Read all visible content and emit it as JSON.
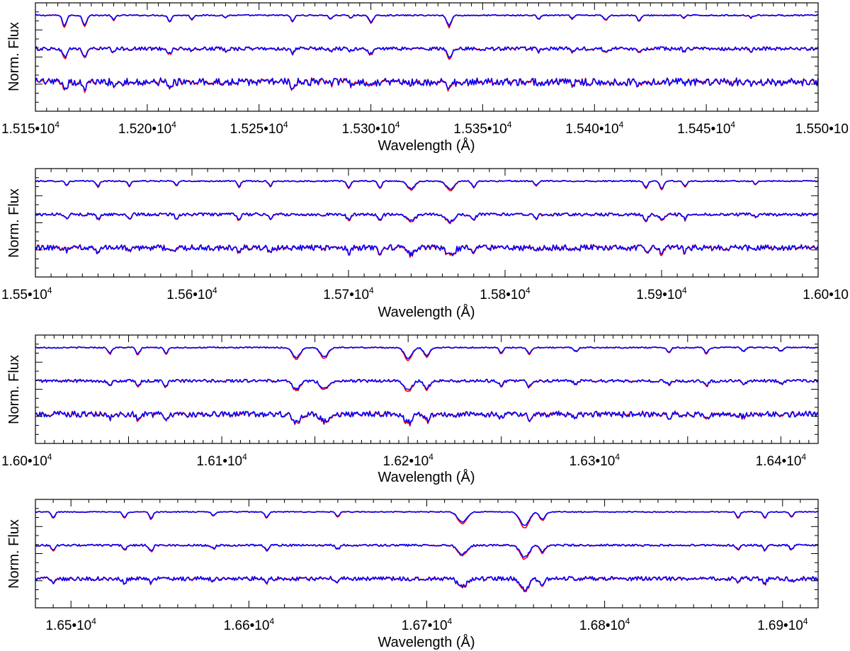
{
  "colors": {
    "observed": "#ff0000",
    "model": "#0000ff",
    "axis": "#000000"
  },
  "chart_data": [
    {
      "type": "line",
      "xlabel": "Wavelength (Å)",
      "ylabel": "Norm. Flux",
      "xlim": [
        15150,
        15500
      ],
      "ticks": [
        {
          "value": 15150,
          "label": "1.515•10",
          "exp": "4"
        },
        {
          "value": 15200,
          "label": "1.520•10",
          "exp": "4"
        },
        {
          "value": 15250,
          "label": "1.525•10",
          "exp": "4"
        },
        {
          "value": 15300,
          "label": "1.530•10",
          "exp": "4"
        },
        {
          "value": 15350,
          "label": "1.535•10",
          "exp": "4"
        },
        {
          "value": 15400,
          "label": "1.540•10",
          "exp": "4"
        },
        {
          "value": 15450,
          "label": "1.545•10",
          "exp": "4"
        },
        {
          "value": 15500,
          "label": "1.550•10",
          "exp": ""
        }
      ],
      "rows": [
        1.0,
        0.6,
        0.2
      ],
      "noise": [
        0.008,
        0.022,
        0.045
      ],
      "lines": [
        [
          15163,
          0.55,
          0.9
        ],
        [
          15172,
          0.5,
          0.9
        ],
        [
          15185,
          0.25,
          0.7
        ],
        [
          15210,
          0.3,
          0.8
        ],
        [
          15220,
          0.2,
          0.7
        ],
        [
          15235,
          0.12,
          0.6
        ],
        [
          15265,
          0.3,
          0.8
        ],
        [
          15282,
          0.2,
          0.7
        ],
        [
          15291,
          0.15,
          0.6
        ],
        [
          15300,
          0.35,
          1.0
        ],
        [
          15335,
          0.55,
          1.0
        ],
        [
          15375,
          0.2,
          0.7
        ],
        [
          15390,
          0.18,
          0.7
        ],
        [
          15405,
          0.25,
          0.8
        ],
        [
          15420,
          0.3,
          0.8
        ],
        [
          15440,
          0.15,
          0.6
        ],
        [
          15470,
          0.12,
          0.6
        ]
      ]
    },
    {
      "type": "line",
      "xlabel": "Wavelength (Å)",
      "ylabel": "Norm. Flux",
      "xlim": [
        15500,
        16000
      ],
      "ticks": [
        {
          "value": 15500,
          "label": "1.55•10",
          "exp": "4"
        },
        {
          "value": 15600,
          "label": "1.56•10",
          "exp": "4"
        },
        {
          "value": 15700,
          "label": "1.57•10",
          "exp": "4"
        },
        {
          "value": 15800,
          "label": "1.58•10",
          "exp": "4"
        },
        {
          "value": 15900,
          "label": "1.59•10",
          "exp": "4"
        },
        {
          "value": 16000,
          "label": "1.60•10",
          "exp": ""
        }
      ],
      "rows": [
        1.0,
        0.6,
        0.2
      ],
      "noise": [
        0.008,
        0.018,
        0.035
      ],
      "lines": [
        [
          15520,
          0.2,
          1.0
        ],
        [
          15540,
          0.3,
          1.0
        ],
        [
          15560,
          0.25,
          1.0
        ],
        [
          15590,
          0.22,
          1.0
        ],
        [
          15630,
          0.3,
          1.0
        ],
        [
          15650,
          0.25,
          1.0
        ],
        [
          15700,
          0.35,
          1.2
        ],
        [
          15720,
          0.35,
          1.2
        ],
        [
          15740,
          0.4,
          2.5
        ],
        [
          15765,
          0.45,
          2.5
        ],
        [
          15780,
          0.3,
          1.2
        ],
        [
          15820,
          0.25,
          1.0
        ],
        [
          15890,
          0.35,
          1.2
        ],
        [
          15900,
          0.4,
          1.2
        ],
        [
          15915,
          0.3,
          1.0
        ],
        [
          15960,
          0.15,
          1.0
        ]
      ]
    },
    {
      "type": "line",
      "xlabel": "Wavelength (Å)",
      "ylabel": "Norm. Flux",
      "xlim": [
        16000,
        16420
      ],
      "ticks": [
        {
          "value": 16000,
          "label": "1.60•10",
          "exp": "4"
        },
        {
          "value": 16100,
          "label": "1.61•10",
          "exp": "4"
        },
        {
          "value": 16200,
          "label": "1.62•10",
          "exp": "4"
        },
        {
          "value": 16300,
          "label": "1.63•10",
          "exp": "4"
        },
        {
          "value": 16400,
          "label": "1.64•10",
          "exp": "4"
        }
      ],
      "rows": [
        1.0,
        0.6,
        0.2
      ],
      "noise": [
        0.008,
        0.018,
        0.035
      ],
      "lines": [
        [
          16040,
          0.3,
          1.0
        ],
        [
          16055,
          0.35,
          1.0
        ],
        [
          16070,
          0.3,
          1.0
        ],
        [
          16140,
          0.55,
          2.0
        ],
        [
          16155,
          0.5,
          2.0
        ],
        [
          16200,
          0.6,
          2.0
        ],
        [
          16210,
          0.45,
          1.5
        ],
        [
          16250,
          0.3,
          1.0
        ],
        [
          16265,
          0.35,
          1.0
        ],
        [
          16290,
          0.2,
          1.0
        ],
        [
          16340,
          0.25,
          1.0
        ],
        [
          16360,
          0.3,
          1.0
        ],
        [
          16380,
          0.2,
          1.0
        ],
        [
          16400,
          0.2,
          1.0
        ]
      ]
    },
    {
      "type": "line",
      "xlabel": "Wavelength (Å)",
      "ylabel": "Norm. Flux",
      "xlim": [
        16480,
        16920
      ],
      "ticks": [
        {
          "value": 16500,
          "label": "1.65•10",
          "exp": "4"
        },
        {
          "value": 16600,
          "label": "1.66•10",
          "exp": "4"
        },
        {
          "value": 16700,
          "label": "1.67•10",
          "exp": "4"
        },
        {
          "value": 16800,
          "label": "1.68•10",
          "exp": "4"
        },
        {
          "value": 16900,
          "label": "1.69•10",
          "exp": "4"
        }
      ],
      "rows": [
        1.0,
        0.6,
        0.2
      ],
      "noise": [
        0.006,
        0.012,
        0.025
      ],
      "lines": [
        [
          16490,
          0.3,
          1.0
        ],
        [
          16530,
          0.3,
          1.0
        ],
        [
          16545,
          0.35,
          1.0
        ],
        [
          16580,
          0.2,
          1.0
        ],
        [
          16610,
          0.3,
          1.0
        ],
        [
          16650,
          0.25,
          1.0
        ],
        [
          16720,
          0.55,
          2.5
        ],
        [
          16755,
          0.75,
          2.5
        ],
        [
          16765,
          0.4,
          1.5
        ],
        [
          16875,
          0.3,
          1.0
        ],
        [
          16890,
          0.3,
          1.0
        ],
        [
          16905,
          0.25,
          1.0
        ]
      ]
    }
  ]
}
